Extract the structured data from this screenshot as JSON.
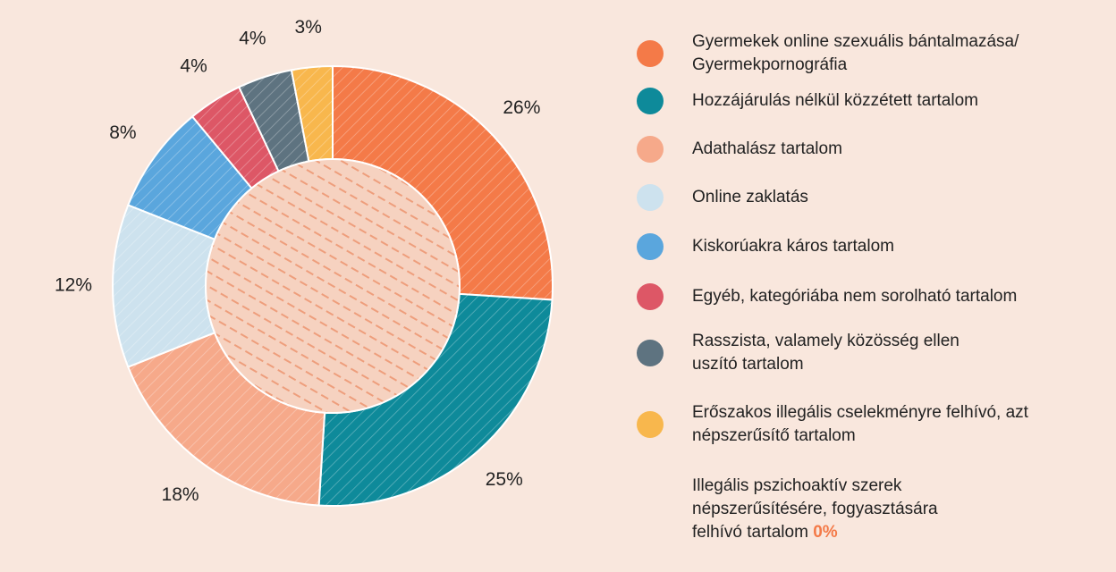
{
  "chart_data": {
    "type": "donut",
    "categories": [
      "Gyermekek online szexuális bántalmazása/ Gyermekpornográfia",
      "Hozzájárulás nélkül közzétett tartalom",
      "Adathalász tartalom",
      "Online zaklatás",
      "Kiskorúakra káros tartalom",
      "Egyéb, kategóriába nem sorolható tartalom",
      "Rasszista, valamely közösség ellen uszító tartalom",
      "Erőszakos illegális cselekményre felhívó, azt népszerűsítő tartalom",
      "Illegális pszichoaktív szerek népszerűsítésére, fogyasztására felhívó tartalom"
    ],
    "values": [
      26,
      25,
      18,
      12,
      8,
      4,
      4,
      3,
      0
    ],
    "value_labels": [
      "26%",
      "25%",
      "18%",
      "12%",
      "8%",
      "4%",
      "4%",
      "3%",
      "0%"
    ],
    "colors": [
      "#f47a48",
      "#0e8a9a",
      "#f6a98a",
      "#cde2ee",
      "#5aa6dd",
      "#dd5766",
      "#5e7380",
      "#f8b74d",
      "#f47a48"
    ]
  }
}
